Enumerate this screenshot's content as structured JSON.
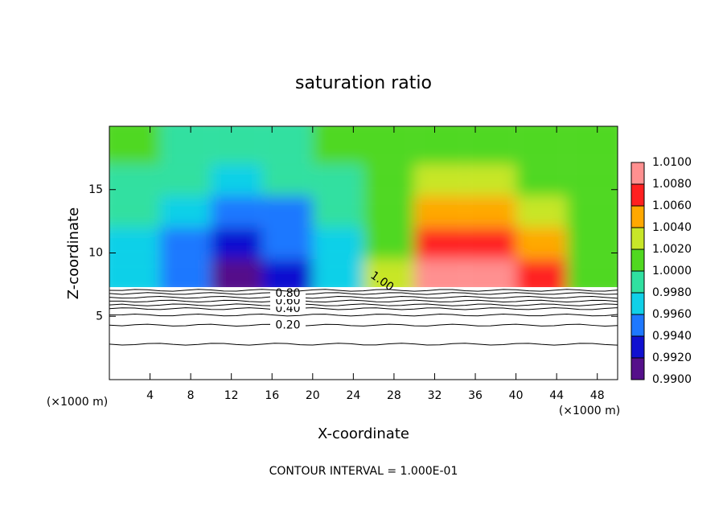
{
  "chart_data": {
    "type": "contour",
    "title": "saturation ratio",
    "xlabel": "X-coordinate",
    "ylabel": "Z-coordinate",
    "x_unit_label": "(×1000 m)",
    "footer": "CONTOUR INTERVAL = 1.000E-01",
    "xlim": [
      0,
      50
    ],
    "ylim": [
      0,
      20
    ],
    "xticks": [
      4,
      8,
      12,
      16,
      20,
      24,
      28,
      32,
      36,
      40,
      44,
      48
    ],
    "yticks": [
      5,
      10,
      15
    ],
    "x_edges": [
      0,
      5,
      10,
      15,
      20,
      25,
      30,
      35,
      40,
      45,
      50
    ],
    "z_edges": [
      7.3,
      9.5,
      12,
      14.5,
      17,
      20
    ],
    "values": [
      [
        0.9975,
        0.9945,
        0.9915,
        0.9935,
        0.9975,
        1.003,
        1.009,
        1.009,
        1.007,
        1.001
      ],
      [
        0.997,
        0.9945,
        0.9925,
        0.994,
        0.997,
        1.001,
        1.006,
        1.007,
        1.004,
        1.001
      ],
      [
        0.999,
        0.996,
        0.9945,
        0.9955,
        0.998,
        1.001,
        1.004,
        1.005,
        1.003,
        1.001
      ],
      [
        0.9995,
        0.998,
        0.997,
        0.998,
        0.999,
        1.001,
        1.002,
        1.002,
        1.001,
        1.0005
      ],
      [
        1.0,
        0.9995,
        0.999,
        0.9995,
        1.0,
        1.001,
        1.0015,
        1.0015,
        1.001,
        1.0005
      ]
    ],
    "colorbar": {
      "ticks": [
        {
          "value": 0.99,
          "label": "0.9900"
        },
        {
          "value": 0.992,
          "label": "0.9920"
        },
        {
          "value": 0.994,
          "label": "0.9940"
        },
        {
          "value": 0.996,
          "label": "0.9960"
        },
        {
          "value": 0.998,
          "label": "0.9980"
        },
        {
          "value": 1.0,
          "label": "1.0000"
        },
        {
          "value": 1.002,
          "label": "1.0020"
        },
        {
          "value": 1.004,
          "label": "1.0040"
        },
        {
          "value": 1.006,
          "label": "1.0060"
        },
        {
          "value": 1.008,
          "label": "1.0080"
        },
        {
          "value": 1.01,
          "label": "1.0100"
        }
      ],
      "colors": [
        "#55108a",
        "#1010d0",
        "#1e78ff",
        "#10d0e8",
        "#30e0a0",
        "#50d820",
        "#c8e628",
        "#ffa800",
        "#ff2020",
        "#ff9090"
      ]
    },
    "contours": [
      {
        "level": 0.1,
        "z": 2.8
      },
      {
        "level": {
          "value": 0.2,
          "label": "0.20"
        },
        "z": 4.3
      },
      {
        "level": 0.3,
        "z": 5.1
      },
      {
        "level": {
          "value": 0.4,
          "label": "0.40"
        },
        "z": 5.6
      },
      {
        "level": 0.5,
        "z": 5.9
      },
      {
        "level": {
          "value": 0.6,
          "label": "0.60"
        },
        "z": 6.2
      },
      {
        "level": 0.7,
        "z": 6.5
      },
      {
        "level": {
          "value": 0.8,
          "label": "0.80"
        },
        "z": 6.8
      },
      {
        "level": 0.9,
        "z": 7.05
      }
    ],
    "annotation": "1.00"
  }
}
